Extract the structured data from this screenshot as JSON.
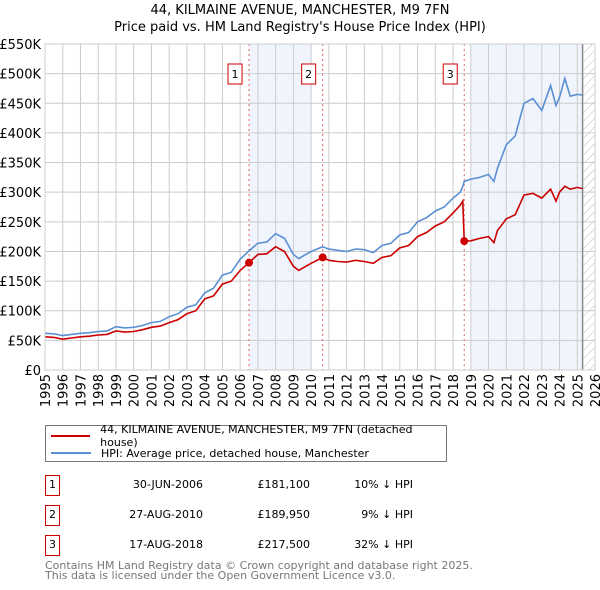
{
  "title": "44, KILMAINE AVENUE, MANCHESTER, M9 7FN",
  "subtitle": "Price paid vs. HM Land Registry's House Price Index (HPI)",
  "chart_data": {
    "type": "line",
    "title": "44, KILMAINE AVENUE, MANCHESTER, M9 7FN",
    "subtitle": "Price paid vs. HM Land Registry's House Price Index (HPI)",
    "xlim": [
      1995,
      2026
    ],
    "ylim": [
      0,
      550000
    ],
    "y_ticks": [
      0,
      50000,
      100000,
      150000,
      200000,
      250000,
      300000,
      350000,
      400000,
      450000,
      500000,
      550000
    ],
    "y_tick_labels": [
      "£0",
      "£50K",
      "£100K",
      "£150K",
      "£200K",
      "£250K",
      "£300K",
      "£350K",
      "£400K",
      "£450K",
      "£500K",
      "£550K"
    ],
    "x_ticks": [
      "1995",
      "1996",
      "1997",
      "1998",
      "1999",
      "2000",
      "2001",
      "2002",
      "2003",
      "2004",
      "2005",
      "2006",
      "2007",
      "2008",
      "2009",
      "2010",
      "2011",
      "2012",
      "2013",
      "2014",
      "2015",
      "2016",
      "2017",
      "2018",
      "2019",
      "2020",
      "2021",
      "2022",
      "2023",
      "2024",
      "2025",
      "2026"
    ],
    "grid": true,
    "shaded_ranges": [
      [
        2006.5,
        2010.0
      ],
      [
        2019.0,
        2025.3
      ]
    ],
    "forecast_hatch_from": 2025.3,
    "series": [
      {
        "name": "44, KILMAINE AVENUE, MANCHESTER, M9 7FN (detached house)",
        "color": "#cc0000",
        "x": [
          1995,
          1995.5,
          1996,
          1996.5,
          1997,
          1997.5,
          1998,
          1998.5,
          1999,
          1999.5,
          2000,
          2000.5,
          2001,
          2001.5,
          2002,
          2002.5,
          2003,
          2003.5,
          2004,
          2004.5,
          2005,
          2005.5,
          2006,
          2006.5,
          2007,
          2007.5,
          2008,
          2008.5,
          2009,
          2009.3,
          2009.7,
          2010,
          2010.65,
          2011,
          2011.5,
          2012,
          2012.5,
          2013,
          2013.5,
          2014,
          2014.5,
          2015,
          2015.5,
          2016,
          2016.5,
          2017,
          2017.5,
          2018,
          2018.4,
          2018.55,
          2018.63,
          2019,
          2019.5,
          2020,
          2020.3,
          2020.5,
          2021,
          2021.5,
          2022,
          2022.5,
          2023,
          2023.5,
          2023.8,
          2024,
          2024.3,
          2024.6,
          2025,
          2025.3
        ],
        "y": [
          56000,
          55000,
          52000,
          54000,
          56000,
          57000,
          59000,
          60000,
          66000,
          64000,
          65000,
          68000,
          72000,
          74000,
          80000,
          85000,
          95000,
          100000,
          120000,
          125000,
          145000,
          150000,
          168000,
          181100,
          195000,
          196000,
          208000,
          200000,
          175000,
          168000,
          175000,
          180000,
          189950,
          185000,
          183000,
          182000,
          185000,
          183000,
          180000,
          190000,
          193000,
          206000,
          210000,
          225000,
          232000,
          243000,
          250000,
          265000,
          278000,
          285000,
          217500,
          218000,
          222000,
          225000,
          215000,
          235000,
          255000,
          262000,
          295000,
          298000,
          290000,
          305000,
          285000,
          300000,
          310000,
          305000,
          308000,
          306000
        ]
      },
      {
        "name": "HPI: Average price, detached house, Manchester",
        "color": "#5b8fd4",
        "x": [
          1995,
          1995.5,
          1996,
          1996.5,
          1997,
          1997.5,
          1998,
          1998.5,
          1999,
          1999.5,
          2000,
          2000.5,
          2001,
          2001.5,
          2002,
          2002.5,
          2003,
          2003.5,
          2004,
          2004.5,
          2005,
          2005.5,
          2006,
          2006.5,
          2007,
          2007.5,
          2008,
          2008.5,
          2009,
          2009.3,
          2009.7,
          2010,
          2010.65,
          2011,
          2011.5,
          2012,
          2012.5,
          2013,
          2013.5,
          2014,
          2014.5,
          2015,
          2015.5,
          2016,
          2016.5,
          2017,
          2017.5,
          2018,
          2018.4,
          2018.55,
          2018.63,
          2019,
          2019.5,
          2020,
          2020.3,
          2020.5,
          2021,
          2021.5,
          2022,
          2022.5,
          2023,
          2023.5,
          2023.8,
          2024,
          2024.3,
          2024.6,
          2025,
          2025.3
        ],
        "y": [
          62000,
          61000,
          58000,
          60000,
          62000,
          63000,
          65000,
          66000,
          73000,
          71000,
          72000,
          75000,
          80000,
          82000,
          90000,
          95000,
          106000,
          110000,
          130000,
          138000,
          160000,
          165000,
          187000,
          201000,
          214000,
          216000,
          230000,
          222000,
          195000,
          188000,
          195000,
          200000,
          208000,
          204000,
          202000,
          200000,
          204000,
          203000,
          198000,
          210000,
          214000,
          228000,
          232000,
          250000,
          257000,
          268000,
          275000,
          290000,
          300000,
          310000,
          318000,
          322000,
          325000,
          330000,
          318000,
          340000,
          380000,
          395000,
          450000,
          458000,
          438000,
          480000,
          446000,
          460000,
          492000,
          462000,
          465000,
          464000
        ]
      }
    ],
    "sales": [
      {
        "label": "1",
        "x": 2006.5,
        "y": 181100
      },
      {
        "label": "2",
        "x": 2010.65,
        "y": 189950
      },
      {
        "label": "3",
        "x": 2018.63,
        "y": 217500
      }
    ]
  },
  "legend": [
    {
      "label": "44, KILMAINE AVENUE, MANCHESTER, M9 7FN (detached house)",
      "color": "#cc0000"
    },
    {
      "label": "HPI: Average price, detached house, Manchester",
      "color": "#5b8fd4"
    }
  ],
  "transactions": [
    {
      "num": "1",
      "date": "30-JUN-2006",
      "price": "£181,100",
      "pct": "10% ↓ HPI"
    },
    {
      "num": "2",
      "date": "27-AUG-2010",
      "price": "£189,950",
      "pct": "9% ↓ HPI"
    },
    {
      "num": "3",
      "date": "17-AUG-2018",
      "price": "£217,500",
      "pct": "32% ↓ HPI"
    }
  ],
  "footer": [
    "Contains HM Land Registry data © Crown copyright and database right 2025.",
    "This data is licensed under the Open Government Licence v3.0."
  ]
}
